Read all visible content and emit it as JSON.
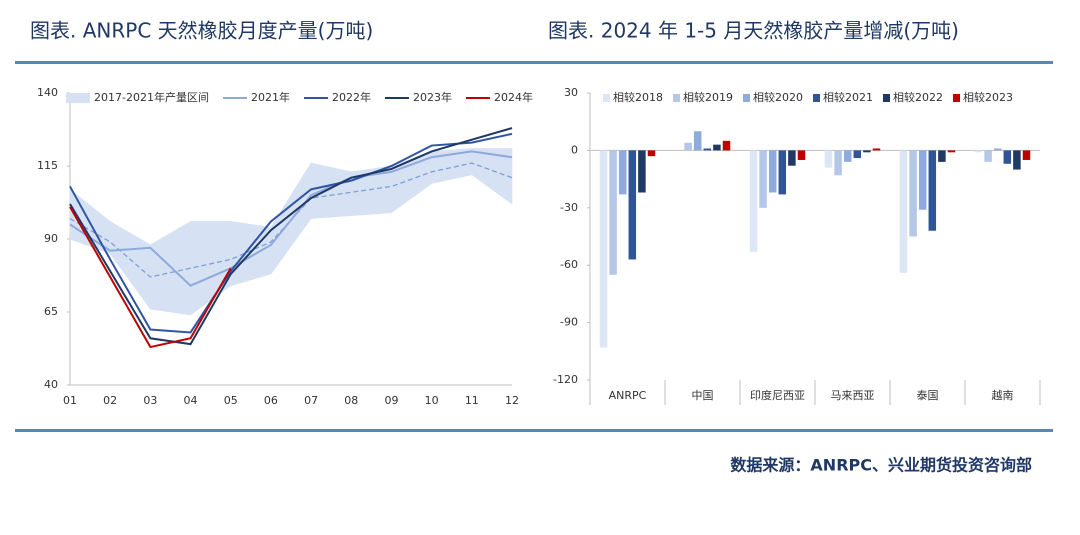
{
  "chart_data": [
    {
      "type": "line",
      "title": "图表. ANRPC 天然橡胶月度产量(万吨)",
      "categories": [
        "01",
        "02",
        "03",
        "04",
        "05",
        "06",
        "07",
        "08",
        "09",
        "10",
        "11",
        "12"
      ],
      "ylim": [
        40,
        140
      ],
      "yticks": [
        40,
        65,
        90,
        115,
        140
      ],
      "band": {
        "name": "2017-2021年产量区间",
        "color": "#d6e1f4",
        "upper": [
          107,
          96,
          88,
          96,
          96,
          94,
          116,
          113,
          115,
          120,
          121,
          121
        ],
        "lower": [
          90,
          85,
          66,
          64,
          74,
          78,
          97,
          98,
          99,
          109,
          112,
          102
        ]
      },
      "series": [
        {
          "color": "#7f9fd6",
          "dashed": true,
          "values": [
            97,
            89,
            77,
            80,
            83,
            89,
            104,
            106,
            108,
            113,
            116,
            111
          ]
        },
        {
          "name": "2021年",
          "color": "#8eaadb",
          "values": [
            95,
            86,
            87,
            74,
            80,
            88,
            105,
            111,
            113,
            118,
            120,
            118
          ]
        },
        {
          "name": "2022年",
          "color": "#2f55a4",
          "values": [
            108,
            83,
            59,
            58,
            79,
            96,
            107,
            110,
            115,
            122,
            123,
            126
          ]
        },
        {
          "name": "2023年",
          "color": "#1f3864",
          "values": [
            102,
            79,
            56,
            54,
            78,
            93,
            104,
            111,
            114,
            120,
            124,
            128
          ]
        },
        {
          "name": "2024年",
          "color": "#c00000",
          "values": [
            101,
            77,
            53,
            56,
            80,
            null,
            null,
            null,
            null,
            null,
            null,
            null
          ]
        }
      ]
    },
    {
      "type": "bar",
      "title": "图表. 2024 年 1-5 月天然橡胶产量增减(万吨)",
      "categories": [
        "ANRPC",
        "中国",
        "印度尼西亚",
        "马来西亚",
        "泰国",
        "越南"
      ],
      "ylim": [
        -120,
        30
      ],
      "yticks": [
        30,
        0,
        -30,
        -60,
        -90,
        -120
      ],
      "series": [
        {
          "name": "相较2018",
          "color": "#dce6f5",
          "values": [
            -103,
            0,
            -53,
            -9,
            -64,
            -1
          ]
        },
        {
          "name": "相较2019",
          "color": "#b4c7e7",
          "values": [
            -65,
            4,
            -30,
            -13,
            -45,
            -6
          ]
        },
        {
          "name": "相较2020",
          "color": "#8faadc",
          "values": [
            -23,
            10,
            -22,
            -6,
            -31,
            1
          ]
        },
        {
          "name": "相较2021",
          "color": "#2f5597",
          "values": [
            -57,
            1,
            -23,
            -4,
            -42,
            -7
          ]
        },
        {
          "name": "相较2022",
          "color": "#1f3864",
          "values": [
            -22,
            3,
            -8,
            -1,
            -6,
            -10
          ]
        },
        {
          "name": "相较2023",
          "color": "#c00000",
          "values": [
            -3,
            5,
            -5,
            1,
            -1,
            -5
          ]
        }
      ]
    }
  ],
  "source": "数据来源：ANRPC、兴业期货投资咨询部"
}
